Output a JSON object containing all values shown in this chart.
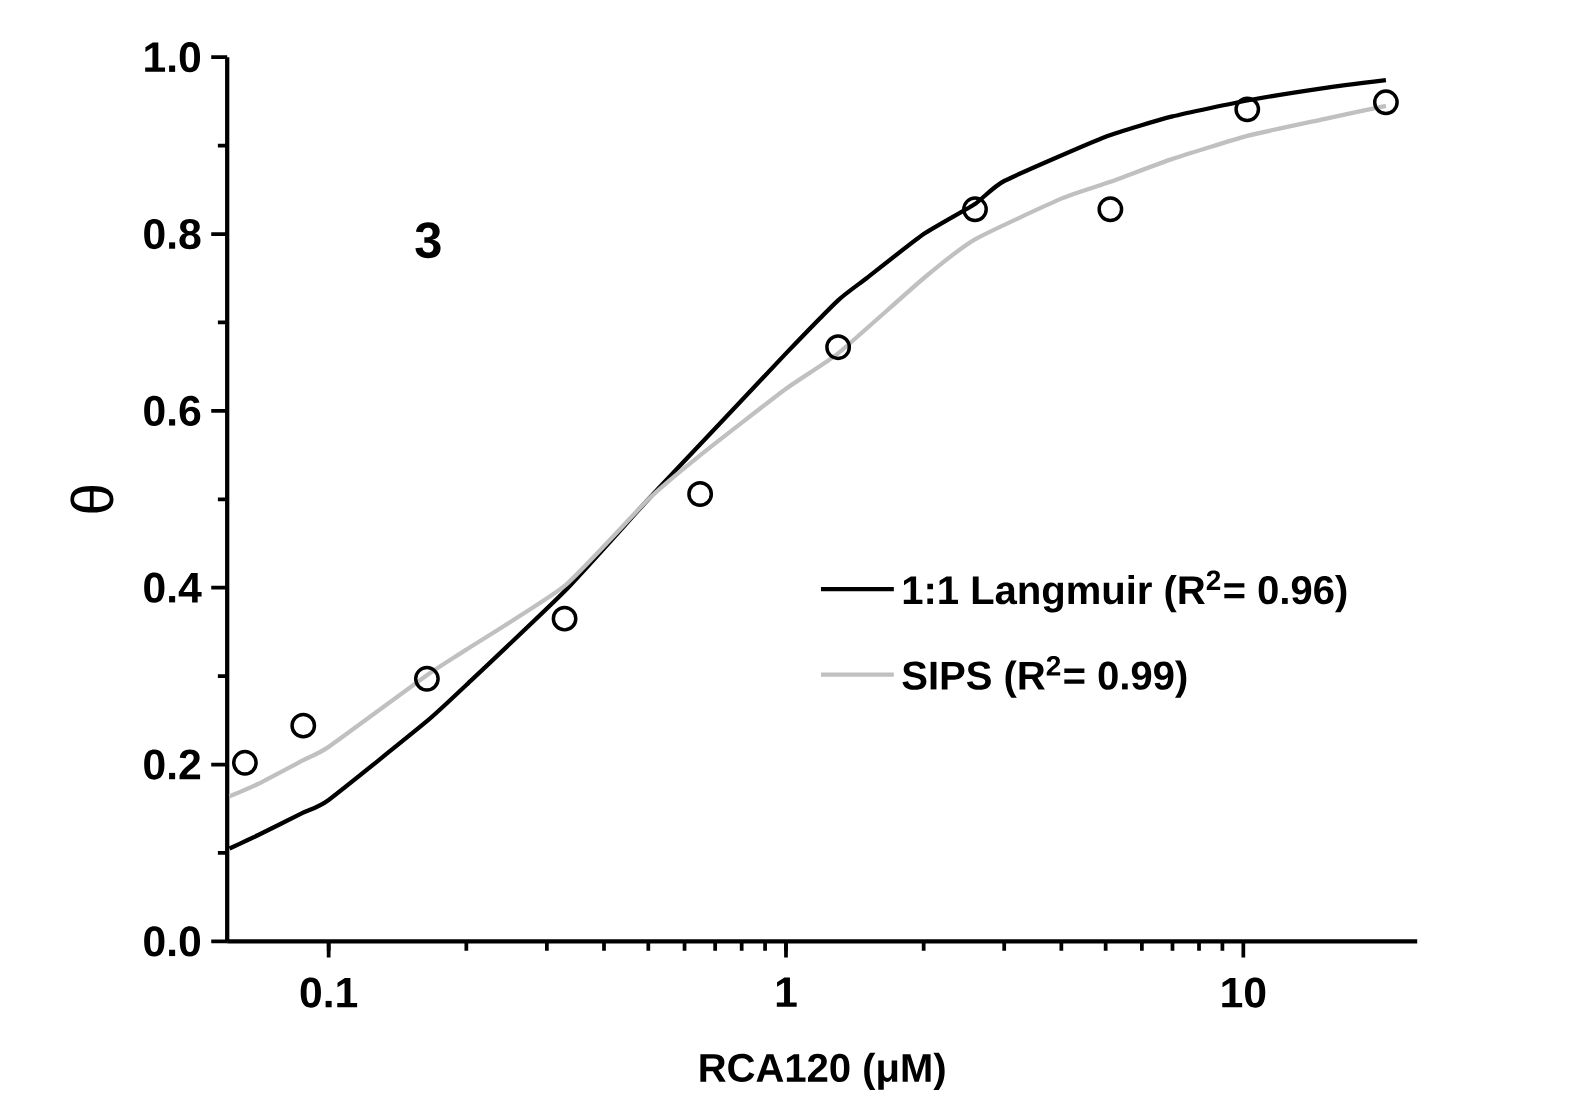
{
  "chart_data": {
    "type": "line",
    "xlabel": "RCA120 (μM)",
    "ylabel": "θ",
    "annotations": [
      "3"
    ],
    "log": "x",
    "xlim": [
      0.06,
      24
    ],
    "xticks": [
      0.1,
      1,
      10
    ],
    "ylim": [
      0,
      1
    ],
    "yticks": [
      {
        "value": 0,
        "label": "0.0"
      },
      0.2,
      0.4,
      0.6,
      0.8,
      {
        "value": 1,
        "label": "1.0"
      }
    ],
    "legend": "right",
    "grid": false,
    "series": [
      {
        "type": "scatter",
        "marker": "circle",
        "color": "#000000",
        "x": [
          0.0656,
          0.088,
          0.164,
          0.328,
          0.649,
          1.3,
          2.59,
          5.12,
          10.2,
          20.5
        ],
        "values": [
          0.202,
          0.244,
          0.297,
          0.365,
          0.506,
          0.672,
          0.828,
          0.828,
          0.941,
          0.949
        ]
      },
      {
        "marker": "none",
        "name": "1:1 Langmuir (R$^{2}$= 0.96)",
        "color": "#000000",
        "x": [
          0.0607,
          0.07,
          0.0875,
          0.1,
          0.164,
          0.2,
          0.328,
          0.5,
          0.7,
          1,
          1.3,
          1.5,
          2,
          2.59,
          3,
          5,
          7,
          10.2,
          15,
          20.5
        ],
        "values": [
          0.105,
          0.12,
          0.145,
          0.16,
          0.249,
          0.29,
          0.396,
          0.5,
          0.58,
          0.665,
          0.725,
          0.75,
          0.8,
          0.834,
          0.86,
          0.91,
          0.933,
          0.951,
          0.965,
          0.974
        ]
      },
      {
        "marker": "none",
        "name": "SIPS (R$^{2}$= 0.99)",
        "color": "#c0c0c0",
        "x": [
          0.0607,
          0.07,
          0.088,
          0.1,
          0.164,
          0.2,
          0.328,
          0.5,
          0.65,
          1,
          1.3,
          2,
          2.59,
          4,
          5.12,
          7,
          10.2,
          15,
          20.5
        ],
        "values": [
          0.164,
          0.178,
          0.205,
          0.22,
          0.301,
          0.33,
          0.402,
          0.5,
          0.55,
          0.625,
          0.665,
          0.75,
          0.794,
          0.84,
          0.859,
          0.885,
          0.911,
          0.93,
          0.945
        ]
      }
    ]
  }
}
